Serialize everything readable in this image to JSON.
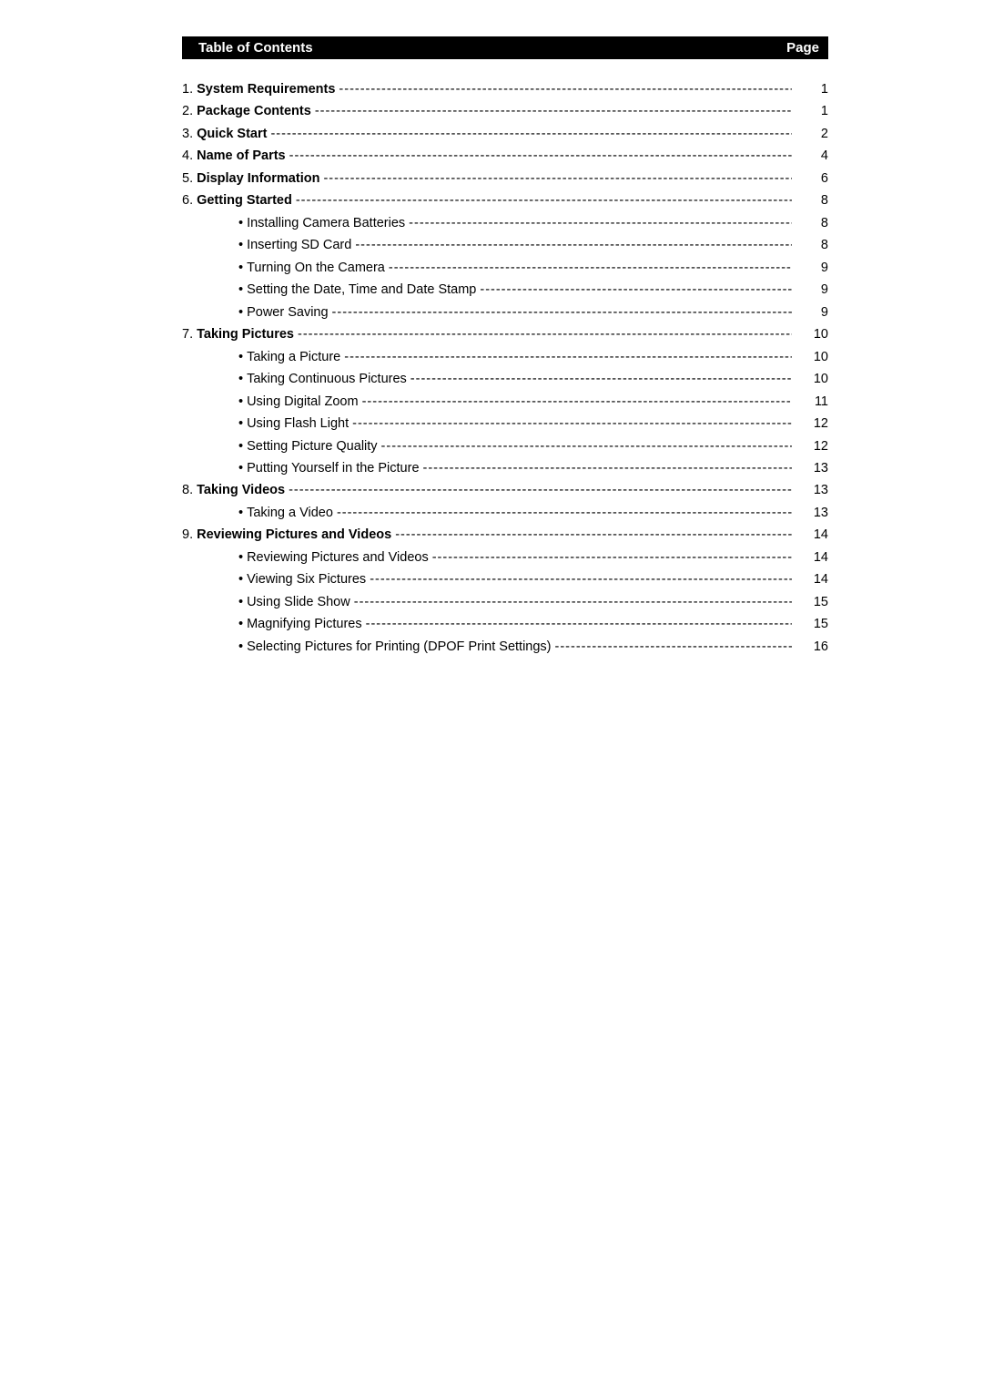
{
  "header": {
    "title": "Table of Contents",
    "page_label": "Page"
  },
  "toc": [
    {
      "num": "1.",
      "title": "System Requirements",
      "page": "1",
      "bold": true,
      "indent": 0
    },
    {
      "num": "2.",
      "title": "Package Contents",
      "page": "1",
      "bold": true,
      "indent": 0
    },
    {
      "num": "3.",
      "title": "Quick Start",
      "page": "2",
      "bold": true,
      "indent": 0
    },
    {
      "num": "4.",
      "title": "Name of Parts",
      "page": "4",
      "bold": true,
      "indent": 0
    },
    {
      "num": "5.",
      "title": "Display Information",
      "page": "6",
      "bold": true,
      "indent": 0
    },
    {
      "num": "6.",
      "title": "Getting Started",
      "page": "8",
      "bold": true,
      "indent": 0
    },
    {
      "num": "•",
      "title": "Installing Camera Batteries",
      "page": "8",
      "bold": false,
      "indent": 1
    },
    {
      "num": "•",
      "title": "Inserting SD Card",
      "page": "8",
      "bold": false,
      "indent": 1
    },
    {
      "num": "•",
      "title": "Turning On the Camera",
      "page": "9",
      "bold": false,
      "indent": 1
    },
    {
      "num": "•",
      "title": "Setting the Date, Time and Date Stamp",
      "page": "9",
      "bold": false,
      "indent": 1
    },
    {
      "num": "•",
      "title": "Power Saving",
      "page": "9",
      "bold": false,
      "indent": 1
    },
    {
      "num": "7.",
      "title": "Taking Pictures",
      "page": "10",
      "bold": true,
      "indent": 0
    },
    {
      "num": "•",
      "title": "Taking a Picture",
      "page": "10",
      "bold": false,
      "indent": 1
    },
    {
      "num": "•",
      "title": "Taking Continuous Pictures",
      "page": "10",
      "bold": false,
      "indent": 1
    },
    {
      "num": "•",
      "title": "Using Digital Zoom",
      "page": "11",
      "bold": false,
      "indent": 1
    },
    {
      "num": "•",
      "title": "Using Flash Light",
      "page": "12",
      "bold": false,
      "indent": 1
    },
    {
      "num": "•",
      "title": "Setting Picture Quality",
      "page": "12",
      "bold": false,
      "indent": 1
    },
    {
      "num": "•",
      "title": "Putting Yourself in the Picture",
      "page": "13",
      "bold": false,
      "indent": 1
    },
    {
      "num": "8.",
      "title": "Taking Videos",
      "page": "13",
      "bold": true,
      "indent": 0
    },
    {
      "num": "•",
      "title": "Taking a Video",
      "page": "13",
      "bold": false,
      "indent": 1
    },
    {
      "num": "9.",
      "title": "Reviewing Pictures and Videos",
      "page": "14",
      "bold": true,
      "indent": 0
    },
    {
      "num": "•",
      "title": "Reviewing Pictures and Videos",
      "page": "14",
      "bold": false,
      "indent": 1
    },
    {
      "num": "•",
      "title": "Viewing Six Pictures",
      "page": "14",
      "bold": false,
      "indent": 1
    },
    {
      "num": "•",
      "title": "Using Slide Show",
      "page": "15",
      "bold": false,
      "indent": 1
    },
    {
      "num": "•",
      "title": "Magnifying Pictures",
      "page": "15",
      "bold": false,
      "indent": 1
    },
    {
      "num": "•",
      "title": "Selecting Pictures for Printing (DPOF Print Settings)",
      "page": "16",
      "bold": false,
      "indent": 1
    }
  ]
}
